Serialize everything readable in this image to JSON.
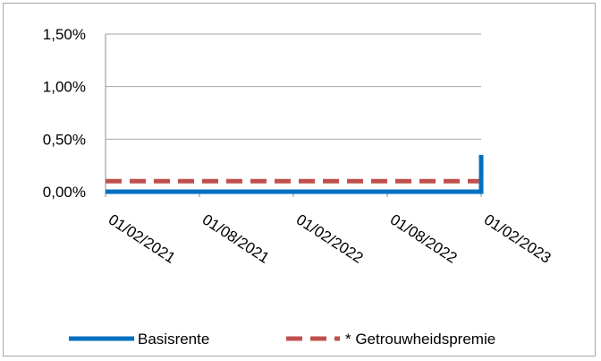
{
  "chart_data": {
    "type": "line",
    "title": "",
    "xlabel": "",
    "ylabel": "",
    "x": [
      "01/02/2021",
      "01/08/2021",
      "01/02/2022",
      "01/08/2022",
      "01/02/2023"
    ],
    "ylim": [
      0,
      1.5
    ],
    "yticks": [
      "0,00%",
      "0,50%",
      "1,00%",
      "1,50%"
    ],
    "ytick_values": [
      0,
      0.5,
      1.0,
      1.5
    ],
    "grid": true,
    "legend_position": "bottom",
    "series": [
      {
        "name": "Basisrente",
        "color": "#0070c0",
        "style": "solid",
        "points": [
          [
            0,
            0.0
          ],
          [
            4,
            0.0
          ],
          [
            4,
            0.35
          ]
        ]
      },
      {
        "name": "* Getrouwheidspremie",
        "color": "#c0504d",
        "style": "dashed",
        "points": [
          [
            0,
            0.1
          ],
          [
            4,
            0.1
          ],
          [
            4,
            0.25
          ]
        ]
      }
    ]
  }
}
